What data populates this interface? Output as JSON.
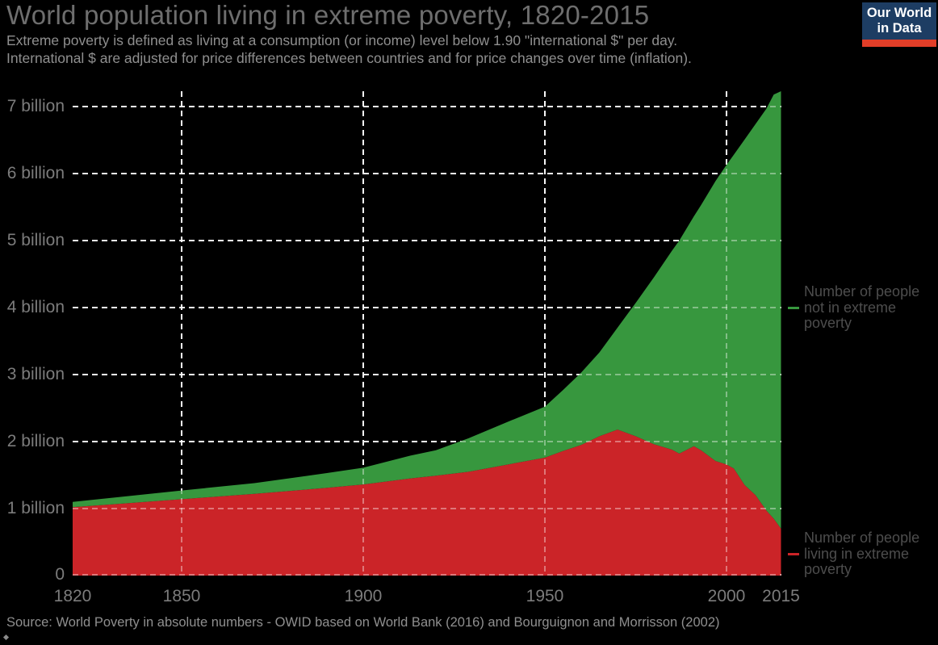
{
  "header": {
    "title": "World population living in extreme poverty, 1820-2015",
    "subtitle_line1": "Extreme poverty is defined as living at a consumption (or income) level below 1.90 \"international $\" per day.",
    "subtitle_line2": "International $ are adjusted for price differences between countries and for price changes over time (inflation)."
  },
  "logo": {
    "line1": "Our World",
    "line2": "in Data",
    "bg_color": "#1d3d63",
    "stripe_color": "#e23e28"
  },
  "chart_data": {
    "type": "area",
    "stacked": true,
    "title": "World population living in extreme poverty, 1820-2015",
    "background": "#000000",
    "grid": "dashed-white",
    "gridline_color": "#ffffff",
    "axis_label_color": "#7c7c7c",
    "xlim": [
      1820,
      2015
    ],
    "ylim": [
      0,
      7.35
    ],
    "y_unit": "billion people",
    "x": [
      1820,
      1850,
      1870,
      1890,
      1900,
      1913,
      1920,
      1929,
      1940,
      1950,
      1955,
      1960,
      1965,
      1970,
      1975,
      1980,
      1985,
      1987,
      1991,
      1993,
      1997,
      2000,
      2002,
      2005,
      2008,
      2011,
      2013,
      2015
    ],
    "series": [
      {
        "name": "Number of people living in extreme poverty",
        "color": "#cb2428",
        "values": [
          1.02,
          1.14,
          1.22,
          1.31,
          1.36,
          1.45,
          1.49,
          1.55,
          1.66,
          1.76,
          1.86,
          1.95,
          2.08,
          2.18,
          2.08,
          1.96,
          1.88,
          1.82,
          1.93,
          1.87,
          1.71,
          1.66,
          1.6,
          1.35,
          1.2,
          0.97,
          0.85,
          0.7
        ]
      },
      {
        "name": "Number of people not in extreme poverty",
        "color": "#37973e",
        "values": [
          0.08,
          0.13,
          0.16,
          0.22,
          0.25,
          0.34,
          0.38,
          0.5,
          0.64,
          0.76,
          0.91,
          1.08,
          1.25,
          1.52,
          1.99,
          2.49,
          2.97,
          3.18,
          3.43,
          3.66,
          4.18,
          4.47,
          4.68,
          5.16,
          5.54,
          6.0,
          6.33,
          6.65
        ]
      }
    ],
    "xticks": [
      1820,
      1850,
      1900,
      1950,
      2000,
      2015
    ],
    "vgrid_years": [
      1850,
      1900,
      1950,
      2000
    ],
    "yticks": [
      {
        "value": 0,
        "label": "0"
      },
      {
        "value": 1,
        "label": "1 billion"
      },
      {
        "value": 2,
        "label": "2 billion"
      },
      {
        "value": 3,
        "label": "3 billion"
      },
      {
        "value": 4,
        "label": "4 billion"
      },
      {
        "value": 5,
        "label": "5 billion"
      },
      {
        "value": 6,
        "label": "6 billion"
      },
      {
        "value": 7,
        "label": "7 billion"
      }
    ]
  },
  "legend": {
    "not_in_poverty": {
      "lines": [
        "Number of people",
        "not in extreme",
        "poverty"
      ]
    },
    "in_poverty": {
      "lines": [
        "Number of people",
        "living in extreme",
        "poverty"
      ]
    }
  },
  "footer": {
    "source": "Source: World Poverty in absolute numbers - OWID based on World Bank (2016) and Bourguignon and Morrisson (2002)"
  }
}
